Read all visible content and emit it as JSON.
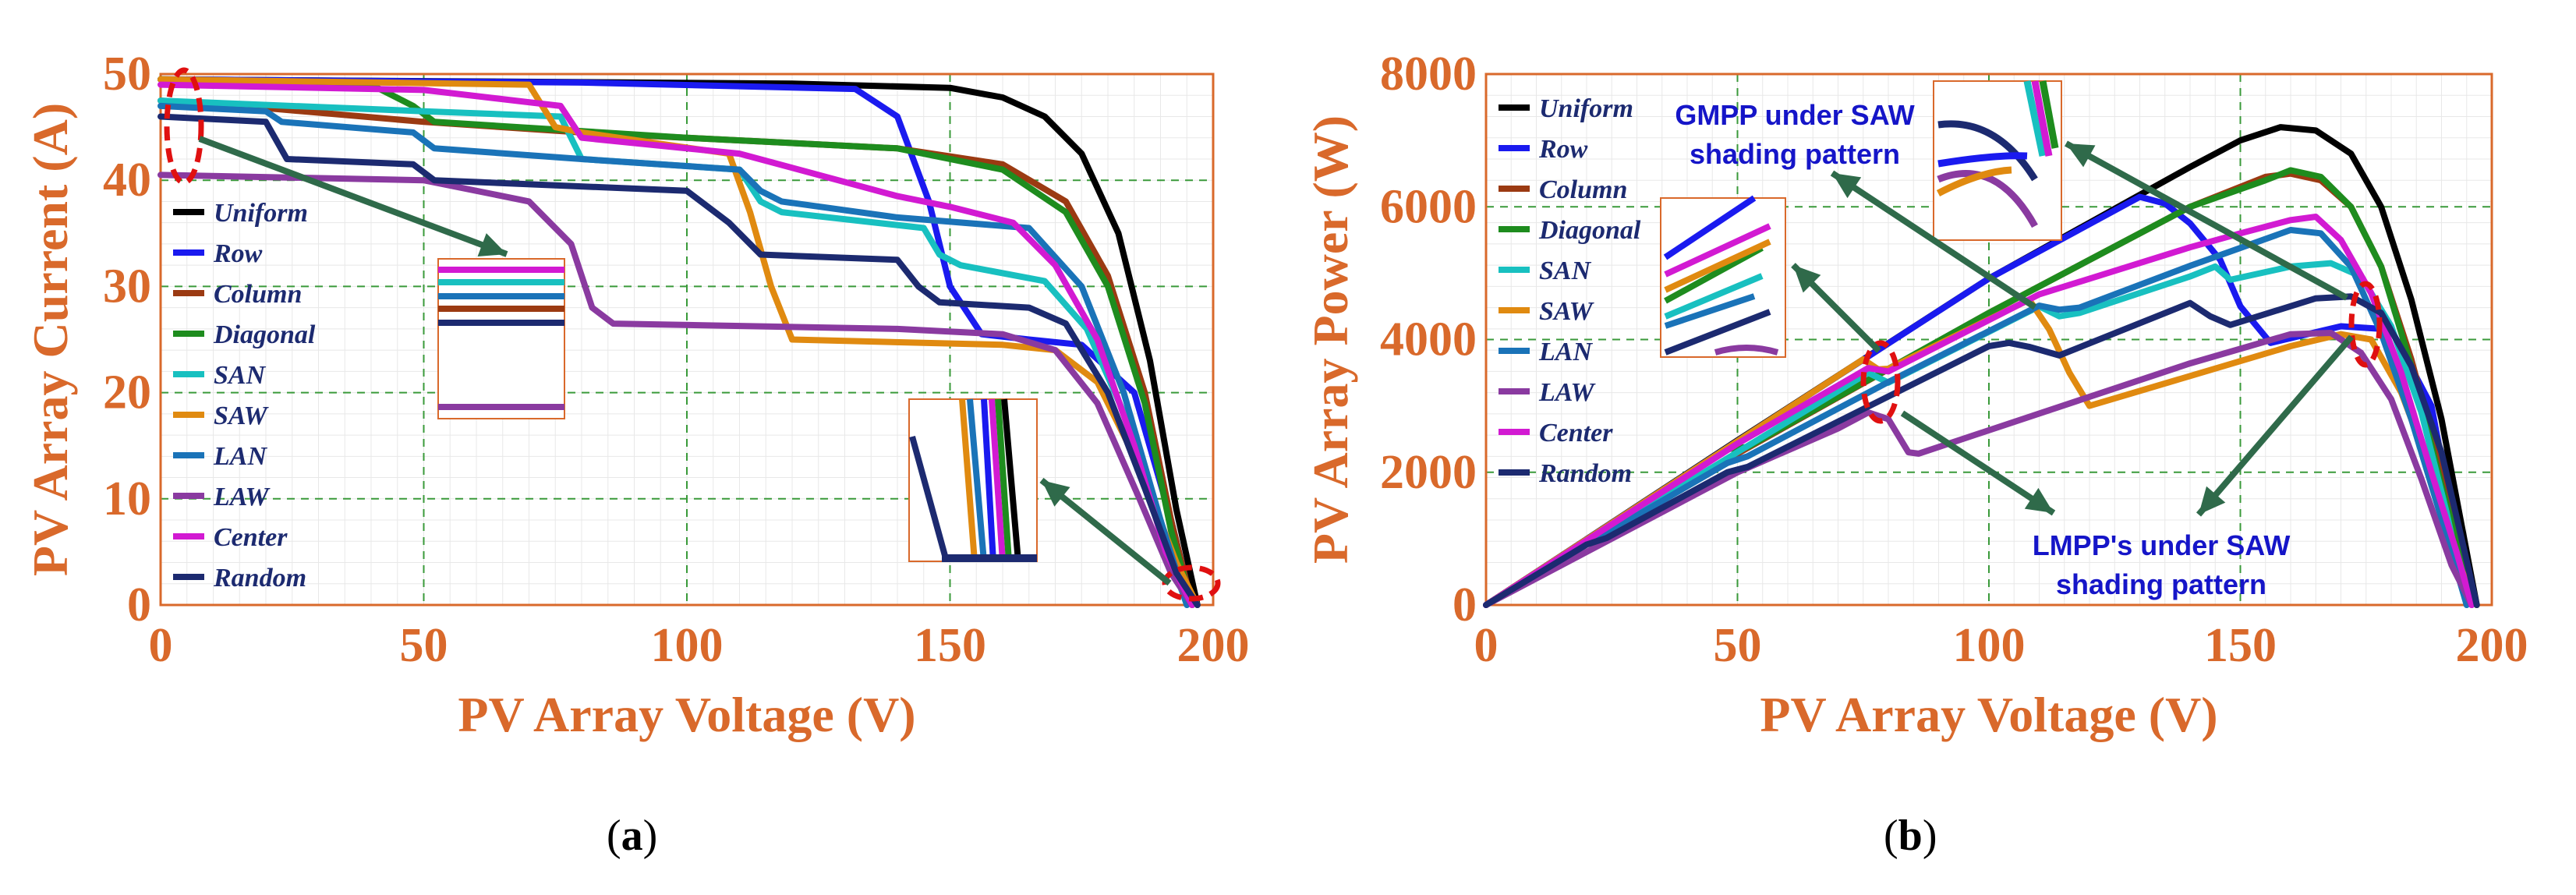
{
  "colors": {
    "axis": "#d9692b",
    "grid_dash": "#3a9a3a",
    "arrow": "#2f6a4a",
    "annotation_text": "#1515c8",
    "marker": "#e01010"
  },
  "chart_data": [
    {
      "type": "line",
      "panel": "(a)",
      "xlabel": "PV Array Voltage (V)",
      "ylabel": "PV Array Current (A)",
      "xlim": [
        0,
        200
      ],
      "ylim": [
        0,
        50
      ],
      "xticks": [
        "0",
        "50",
        "100",
        "150",
        "200"
      ],
      "yticks": [
        "0",
        "10",
        "20",
        "30",
        "40",
        "50"
      ],
      "grid": "dashed major + fine minor",
      "legend_position": "left-middle",
      "series": [
        {
          "name": "Uniform",
          "color": "#000000",
          "x": [
            0,
            60,
            120,
            150,
            160,
            168,
            175,
            182,
            188,
            193,
            197
          ],
          "y": [
            49.5,
            49.3,
            49.1,
            48.7,
            47.8,
            46.0,
            42.5,
            35.0,
            23.0,
            9.0,
            0
          ]
        },
        {
          "name": "Row",
          "color": "#1a1aef",
          "x": [
            0,
            80,
            132,
            140,
            146,
            150,
            156,
            165,
            175,
            185,
            192,
            196
          ],
          "y": [
            49.5,
            49.2,
            48.6,
            46.0,
            38.0,
            30.0,
            25.5,
            25.0,
            24.5,
            20.0,
            8.0,
            0
          ]
        },
        {
          "name": "Column",
          "color": "#9b3a12",
          "x": [
            0,
            20,
            50,
            80,
            100,
            140,
            160,
            172,
            180,
            187,
            192,
            196
          ],
          "y": [
            47.5,
            46.8,
            45.5,
            44.5,
            44.0,
            43.0,
            41.5,
            38.0,
            31.0,
            20.0,
            8.0,
            0
          ]
        },
        {
          "name": "Diagonal",
          "color": "#1e8c1e",
          "x": [
            0,
            40,
            48,
            52,
            100,
            140,
            160,
            172,
            180,
            187,
            192,
            196
          ],
          "y": [
            49.5,
            49.0,
            47.0,
            45.5,
            44.0,
            43.0,
            41.0,
            37.0,
            30.0,
            19.0,
            7.0,
            0
          ]
        },
        {
          "name": "SAN",
          "color": "#18c0c0",
          "x": [
            0,
            50,
            76,
            80,
            110,
            114,
            118,
            145,
            148,
            152,
            168,
            176,
            184,
            190,
            195
          ],
          "y": [
            47.5,
            46.5,
            46.0,
            42.0,
            41.0,
            38.0,
            37.0,
            35.5,
            33.0,
            32.0,
            30.5,
            26.0,
            17.0,
            7.0,
            0
          ]
        },
        {
          "name": "SAW",
          "color": "#e08a10",
          "x": [
            0,
            70,
            75,
            80,
            108,
            112,
            116,
            120,
            160,
            170,
            178,
            186,
            193,
            197
          ],
          "y": [
            49.5,
            49.0,
            45.0,
            44.5,
            42.5,
            37.0,
            30.0,
            25.0,
            24.5,
            24.0,
            21.0,
            13.0,
            4.0,
            0
          ]
        },
        {
          "name": "LAN",
          "color": "#1a73b8",
          "x": [
            0,
            20,
            23,
            48,
            52,
            80,
            110,
            114,
            118,
            140,
            165,
            175,
            183,
            190,
            195
          ],
          "y": [
            47.0,
            46.5,
            45.5,
            44.5,
            43.0,
            42.0,
            41.0,
            39.0,
            38.0,
            36.5,
            35.5,
            30.0,
            20.0,
            8.0,
            0
          ]
        },
        {
          "name": "LAW",
          "color": "#8a3aa0",
          "x": [
            0,
            50,
            70,
            78,
            82,
            86,
            140,
            160,
            170,
            178,
            186,
            192,
            196
          ],
          "y": [
            40.5,
            40.0,
            38.0,
            34.0,
            28.0,
            26.5,
            26.0,
            25.5,
            24.0,
            19.0,
            10.0,
            3.0,
            0
          ]
        },
        {
          "name": "Center",
          "color": "#d21ad2",
          "x": [
            0,
            50,
            76,
            80,
            110,
            140,
            150,
            162,
            170,
            178,
            185,
            191,
            196
          ],
          "y": [
            49.0,
            48.5,
            47.0,
            44.0,
            42.5,
            38.5,
            37.5,
            36.0,
            32.0,
            25.0,
            15.0,
            5.0,
            0
          ]
        },
        {
          "name": "Random",
          "color": "#1c2a70",
          "x": [
            0,
            20,
            24,
            48,
            52,
            100,
            108,
            114,
            140,
            144,
            148,
            165,
            172,
            180,
            187,
            193,
            197
          ],
          "y": [
            46.0,
            45.5,
            42.0,
            41.5,
            40.0,
            39.0,
            36.0,
            33.0,
            32.5,
            30.0,
            28.5,
            28.0,
            26.5,
            20.0,
            11.0,
            3.0,
            0
          ]
        }
      ]
    },
    {
      "type": "line",
      "panel": "(b)",
      "xlabel": "PV Array Voltage (V)",
      "ylabel": "PV Array Power (W)",
      "xlim": [
        0,
        200
      ],
      "ylim": [
        0,
        8000
      ],
      "xticks": [
        "0",
        "50",
        "100",
        "150",
        "200"
      ],
      "yticks": [
        "0",
        "2000",
        "4000",
        "6000",
        "8000"
      ],
      "grid": "dashed major + fine minor",
      "legend_position": "top-left",
      "annotations": [
        "GMPP under SAW shading pattern",
        "LMPP's under SAW shading pattern"
      ],
      "series": [
        {
          "name": "Uniform",
          "color": "#000000",
          "x": [
            0,
            50,
            100,
            140,
            150,
            158,
            165,
            172,
            178,
            184,
            190,
            194,
            197
          ],
          "y": [
            0,
            2480,
            4920,
            6600,
            7000,
            7200,
            7150,
            6800,
            6000,
            4600,
            2800,
            1200,
            0
          ]
        },
        {
          "name": "Row",
          "color": "#1a1aef",
          "x": [
            0,
            50,
            100,
            130,
            135,
            140,
            146,
            150,
            156,
            170,
            180,
            188,
            193,
            196
          ],
          "y": [
            0,
            2470,
            4920,
            6150,
            6050,
            5750,
            5200,
            4500,
            3950,
            4200,
            4150,
            3000,
            1000,
            0
          ]
        },
        {
          "name": "Column",
          "color": "#9b3a12",
          "x": [
            0,
            50,
            100,
            140,
            155,
            160,
            166,
            172,
            178,
            184,
            190,
            194,
            197
          ],
          "y": [
            0,
            2280,
            4400,
            6000,
            6450,
            6500,
            6400,
            6000,
            5100,
            3700,
            2000,
            800,
            0
          ]
        },
        {
          "name": "Diagonal",
          "color": "#1e8c1e",
          "x": [
            0,
            48,
            52,
            100,
            140,
            155,
            160,
            166,
            172,
            178,
            184,
            190,
            194,
            197
          ],
          "y": [
            0,
            2350,
            2380,
            4400,
            6000,
            6400,
            6550,
            6450,
            6000,
            5100,
            3600,
            1800,
            700,
            0
          ]
        },
        {
          "name": "SAN",
          "color": "#18c0c0",
          "x": [
            0,
            76,
            80,
            110,
            114,
            118,
            140,
            145,
            148,
            160,
            168,
            174,
            180,
            186,
            191,
            195
          ],
          "y": [
            0,
            3500,
            3350,
            4500,
            4350,
            4400,
            4950,
            5100,
            4900,
            5100,
            5150,
            4950,
            4200,
            2900,
            1400,
            0
          ]
        },
        {
          "name": "SAW",
          "color": "#e08a10",
          "x": [
            0,
            75,
            78,
            80,
            108,
            112,
            116,
            120,
            140,
            160,
            170,
            176,
            182,
            188,
            193,
            197
          ],
          "y": [
            0,
            3700,
            3550,
            3560,
            4600,
            4150,
            3500,
            3000,
            3450,
            3900,
            4080,
            4000,
            3200,
            2000,
            700,
            0
          ]
        },
        {
          "name": "LAN",
          "color": "#1a73b8",
          "x": [
            0,
            20,
            23,
            48,
            52,
            80,
            110,
            114,
            118,
            140,
            160,
            166,
            172,
            178,
            184,
            190,
            195
          ],
          "y": [
            0,
            930,
            1040,
            2140,
            2240,
            3360,
            4510,
            4450,
            4480,
            5110,
            5650,
            5600,
            5100,
            4100,
            2800,
            1300,
            0
          ]
        },
        {
          "name": "LAW",
          "color": "#8a3aa0",
          "x": [
            0,
            50,
            70,
            76,
            80,
            84,
            86,
            140,
            160,
            168,
            174,
            180,
            186,
            192,
            196
          ],
          "y": [
            0,
            2000,
            2660,
            2900,
            2800,
            2300,
            2280,
            3640,
            4080,
            4100,
            3800,
            3100,
            1900,
            600,
            0
          ]
        },
        {
          "name": "Center",
          "color": "#d21ad2",
          "x": [
            0,
            50,
            76,
            80,
            110,
            140,
            150,
            160,
            165,
            170,
            176,
            182,
            188,
            193,
            196
          ],
          "y": [
            0,
            2430,
            3570,
            3520,
            4680,
            5390,
            5600,
            5800,
            5850,
            5500,
            4700,
            3500,
            2000,
            800,
            0
          ]
        },
        {
          "name": "Random",
          "color": "#1c2a70",
          "x": [
            0,
            20,
            24,
            48,
            52,
            100,
            104,
            108,
            114,
            140,
            144,
            148,
            165,
            172,
            178,
            184,
            190,
            194,
            197
          ],
          "y": [
            0,
            910,
            1010,
            2000,
            2080,
            3900,
            3950,
            3890,
            3760,
            4550,
            4350,
            4220,
            4620,
            4650,
            4400,
            3600,
            2300,
            1000,
            0
          ]
        }
      ]
    }
  ]
}
